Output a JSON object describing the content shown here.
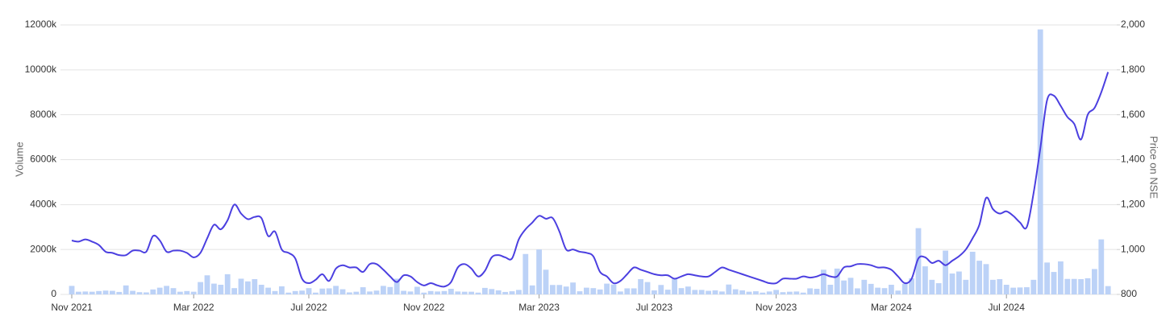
{
  "chart_data": {
    "type": "combo",
    "y_label": "Volume",
    "y2_label": "Price on NSE",
    "categories": [
      "Nov 2021",
      null,
      null,
      null,
      null,
      null,
      null,
      null,
      null,
      null,
      null,
      null,
      null,
      null,
      null,
      null,
      null,
      null,
      "Mar 2022",
      null,
      null,
      null,
      null,
      null,
      null,
      null,
      null,
      null,
      null,
      null,
      null,
      null,
      null,
      null,
      null,
      "Jul 2022",
      null,
      null,
      null,
      null,
      null,
      null,
      null,
      null,
      null,
      null,
      null,
      null,
      null,
      null,
      null,
      null,
      "Nov 2022",
      null,
      null,
      null,
      null,
      null,
      null,
      null,
      null,
      null,
      null,
      null,
      null,
      null,
      null,
      null,
      null,
      "Mar 2023",
      null,
      null,
      null,
      null,
      null,
      null,
      null,
      null,
      null,
      null,
      null,
      null,
      null,
      null,
      null,
      null,
      "Jul 2023",
      null,
      null,
      null,
      null,
      null,
      null,
      null,
      null,
      null,
      null,
      null,
      null,
      null,
      null,
      null,
      null,
      null,
      "Nov 2023",
      null,
      null,
      null,
      null,
      null,
      null,
      null,
      null,
      null,
      null,
      null,
      null,
      null,
      null,
      null,
      null,
      "Mar 2024",
      null,
      null,
      null,
      null,
      null,
      null,
      null,
      null,
      null,
      null,
      null,
      null,
      null,
      null,
      null,
      null,
      "Jul 2024",
      null,
      null,
      null,
      null,
      null,
      null,
      null,
      null,
      null,
      null,
      null,
      null,
      null,
      null,
      null
    ],
    "series": [
      {
        "type": "bar",
        "axis": "y",
        "color": "#bcd2f7",
        "values": [
          380,
          120,
          130,
          120,
          150,
          170,
          160,
          110,
          400,
          160,
          100,
          90,
          220,
          300,
          380,
          280,
          120,
          150,
          120,
          550,
          850,
          480,
          430,
          900,
          280,
          700,
          580,
          680,
          430,
          300,
          150,
          360,
          80,
          150,
          170,
          280,
          80,
          260,
          270,
          380,
          230,
          90,
          120,
          320,
          130,
          170,
          380,
          330,
          700,
          160,
          130,
          340,
          80,
          150,
          130,
          150,
          250,
          130,
          120,
          120,
          80,
          290,
          240,
          180,
          110,
          140,
          200,
          1800,
          400,
          2000,
          1100,
          420,
          420,
          350,
          530,
          140,
          300,
          280,
          220,
          480,
          440,
          130,
          270,
          270,
          680,
          550,
          180,
          420,
          210,
          700,
          280,
          350,
          200,
          200,
          160,
          180,
          130,
          440,
          230,
          180,
          120,
          140,
          80,
          130,
          200,
          100,
          120,
          130,
          80,
          270,
          250,
          1100,
          430,
          1150,
          620,
          740,
          270,
          650,
          470,
          300,
          280,
          430,
          170,
          470,
          720,
          2950,
          1250,
          650,
          500,
          1950,
          930,
          1020,
          650,
          1900,
          1500,
          1350,
          650,
          680,
          430,
          300,
          310,
          320,
          650,
          11800,
          1420,
          1000,
          1470,
          690,
          690,
          680,
          720,
          1130,
          2450,
          370
        ]
      },
      {
        "type": "line",
        "axis": "y2",
        "color": "#4b3fe0",
        "values": [
          1040,
          1035,
          1045,
          1035,
          1020,
          990,
          985,
          975,
          975,
          995,
          995,
          990,
          1060,
          1040,
          990,
          995,
          995,
          985,
          965,
          985,
          1050,
          1110,
          1090,
          1130,
          1200,
          1160,
          1135,
          1145,
          1140,
          1060,
          1080,
          1000,
          985,
          960,
          870,
          850,
          865,
          890,
          860,
          915,
          930,
          920,
          920,
          900,
          935,
          935,
          910,
          880,
          855,
          885,
          880,
          855,
          840,
          850,
          840,
          835,
          855,
          920,
          935,
          915,
          880,
          905,
          965,
          975,
          965,
          960,
          1045,
          1090,
          1120,
          1150,
          1137,
          1140,
          1080,
          1000,
          1000,
          990,
          985,
          970,
          900,
          880,
          850,
          860,
          890,
          920,
          910,
          900,
          890,
          885,
          885,
          870,
          880,
          890,
          885,
          880,
          880,
          900,
          920,
          910,
          900,
          890,
          880,
          870,
          860,
          850,
          850,
          870,
          870,
          870,
          880,
          875,
          880,
          890,
          880,
          880,
          920,
          925,
          935,
          935,
          930,
          920,
          920,
          910,
          880,
          850,
          870,
          960,
          965,
          940,
          950,
          930,
          950,
          970,
          1000,
          1050,
          1110,
          1230,
          1180,
          1160,
          1170,
          1150,
          1120,
          1100,
          1250,
          1450,
          1665,
          1685,
          1640,
          1590,
          1560,
          1490,
          1600,
          1630,
          1700,
          1790
        ]
      }
    ],
    "ylim": [
      0,
      12000
    ],
    "yticks": [
      0,
      {
        "value": 2000,
        "label": "2000k"
      },
      {
        "value": 4000,
        "label": "4000k"
      },
      {
        "value": 6000,
        "label": "6000k"
      },
      {
        "value": 8000,
        "label": "8000k"
      },
      {
        "value": 10000,
        "label": "10000k"
      },
      {
        "value": 12000,
        "label": "12000k"
      }
    ],
    "y2lim": [
      800,
      2000
    ],
    "y2ticks": [
      800,
      {
        "value": 1000,
        "label": "1,000"
      },
      {
        "value": 1200,
        "label": "1,200"
      },
      {
        "value": 1400,
        "label": "1,400"
      },
      {
        "value": 1600,
        "label": "1,600"
      },
      {
        "value": 1800,
        "label": "1,800"
      },
      {
        "value": 2000,
        "label": "2,000"
      }
    ],
    "grid": true
  }
}
